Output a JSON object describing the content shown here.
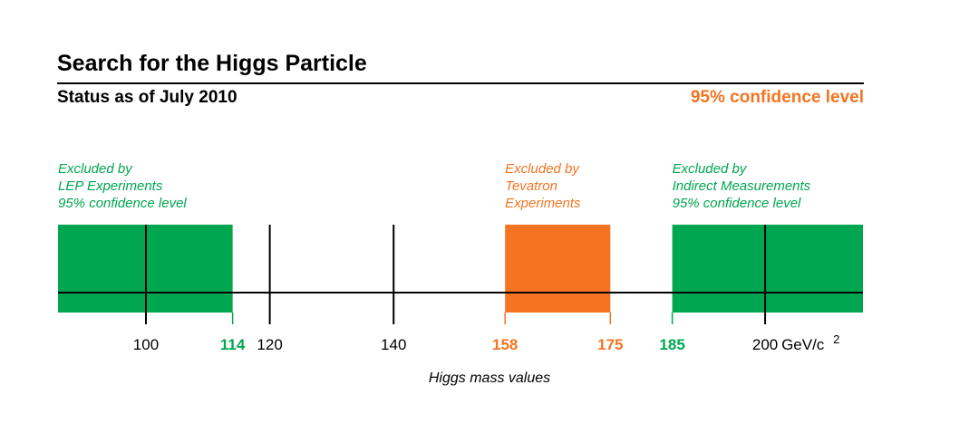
{
  "title": "Search for the Higgs Particle",
  "subtitle": "Status as of July 2010",
  "confidence_label": "95% confidence level",
  "colors": {
    "green": "#00a650",
    "orange": "#f47421",
    "axis": "#000000"
  },
  "chart_data": {
    "type": "range-diagram",
    "xlabel": "Higgs mass values",
    "unit_label": "GeV/c",
    "unit_superscript": "2",
    "xlim": [
      85.8,
      215.8
    ],
    "ticks": [
      {
        "value": 100,
        "label": "100",
        "color": "black"
      },
      {
        "value": 114,
        "label": "114",
        "color": "green"
      },
      {
        "value": 120,
        "label": "120",
        "color": "black"
      },
      {
        "value": 140,
        "label": "140",
        "color": "black"
      },
      {
        "value": 158,
        "label": "158",
        "color": "orange"
      },
      {
        "value": 175,
        "label": "175",
        "color": "orange"
      },
      {
        "value": 185,
        "label": "185",
        "color": "green"
      },
      {
        "value": 200,
        "label": "200",
        "color": "black"
      }
    ],
    "regions": [
      {
        "from": 85.8,
        "to": 114,
        "color": "green",
        "label": [
          "Excluded by",
          "LEP Experiments",
          "95% confidence level"
        ]
      },
      {
        "from": 158,
        "to": 175,
        "color": "orange",
        "label": [
          "Excluded by",
          "Tevatron",
          "Experiments"
        ]
      },
      {
        "from": 185,
        "to": 215.8,
        "color": "green",
        "label": [
          "Excluded by",
          "Indirect Measurements",
          "95% confidence level"
        ]
      }
    ]
  }
}
